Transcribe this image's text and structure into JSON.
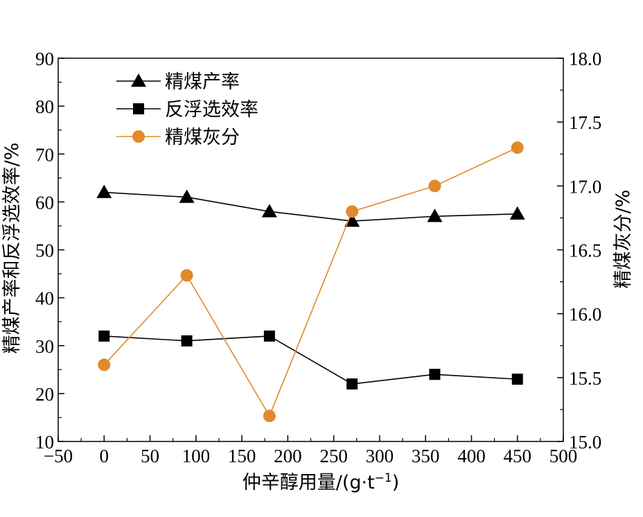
{
  "chart_data": {
    "type": "line",
    "x": [
      0,
      90,
      180,
      270,
      360,
      450
    ],
    "x_label": "仲辛醇用量/(g·t",
    "x_label_sup": "−1",
    "x_label_close": ")",
    "x_ticks": [
      "−50",
      "0",
      "50",
      "100",
      "150",
      "200",
      "250",
      "300",
      "350",
      "400",
      "450",
      "500"
    ],
    "xlim": [
      -50,
      500
    ],
    "y_left_label": "精煤产率和反浮选效率/%",
    "y_left_ticks": [
      "10",
      "20",
      "30",
      "40",
      "50",
      "60",
      "70",
      "80",
      "90"
    ],
    "y_left_lim": [
      10,
      90
    ],
    "y_right_label": "精煤灰分/%",
    "y_right_ticks": [
      "15.0",
      "15.5",
      "16.0",
      "16.5",
      "17.0",
      "17.5",
      "18.0"
    ],
    "y_right_lim": [
      15.0,
      18.0
    ],
    "grid": false,
    "legend_position": "top-left",
    "series": [
      {
        "name": "精煤产率",
        "axis": "left",
        "marker": "triangle",
        "color": "#000000",
        "values": [
          62,
          61,
          58,
          56,
          57,
          57.5
        ]
      },
      {
        "name": "反浮选效率",
        "axis": "left",
        "marker": "square",
        "color": "#000000",
        "values": [
          32,
          31,
          32,
          22,
          24,
          23
        ]
      },
      {
        "name": "精煤灰分",
        "axis": "right",
        "marker": "circle",
        "color": "#e08a2c",
        "values": [
          15.6,
          16.3,
          15.2,
          16.8,
          17.0,
          17.3
        ]
      }
    ]
  }
}
